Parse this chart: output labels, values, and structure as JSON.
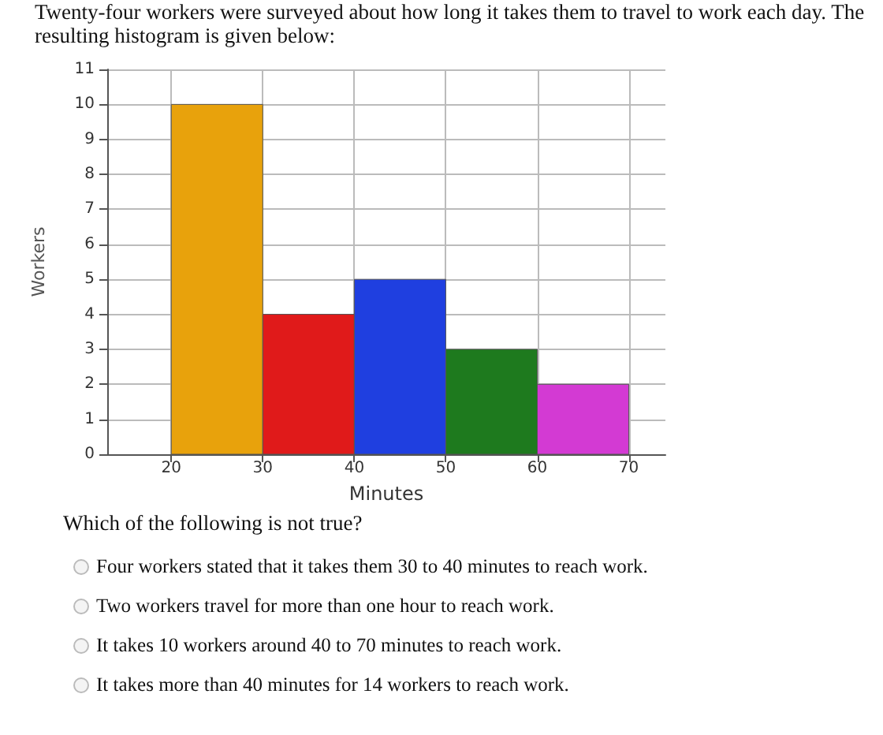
{
  "chart_data": {
    "type": "histogram",
    "title": "Twenty-four workers were surveyed about how long it takes them to travel to work each day. The resulting histogram is given below:",
    "xlabel": "Minutes",
    "ylabel": "Workers",
    "bins": [
      20,
      30,
      40,
      50,
      60,
      70
    ],
    "values": [
      10,
      4,
      5,
      3,
      2
    ],
    "colors": [
      "#e8a20c",
      "#e01a1a",
      "#1f3fe0",
      "#1e7a1e",
      "#d33ad3"
    ],
    "xlim": [
      13,
      74
    ],
    "xticks": [
      20,
      30,
      40,
      50,
      60,
      70
    ],
    "ylim": [
      0,
      11
    ],
    "yticks": [
      0,
      1,
      2,
      3,
      4,
      5,
      6,
      7,
      8,
      9,
      10,
      11
    ],
    "grid": true,
    "annotations": [
      "Which of the following is not true?",
      "Four workers stated that it takes them 30 to 40 minutes to reach work.",
      "Two workers travel for more than one hour to reach work.",
      "It takes 10 workers around 40 to 70 minutes to reach work.",
      "It takes more than 40 minutes for 14 workers to reach work."
    ]
  }
}
